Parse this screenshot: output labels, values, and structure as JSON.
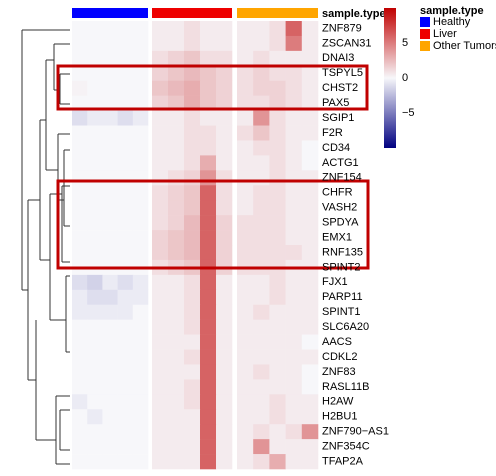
{
  "chart_data": {
    "type": "heatmap",
    "legend_title": "sample.type",
    "rows": [
      "ZNF879",
      "ZSCAN31",
      "DNAI3",
      "TSPYL5",
      "CHST2",
      "PAX5",
      "SGIP1",
      "F2R",
      "CD34",
      "ACTG1",
      "ZNF154",
      "CHFR",
      "VASH2",
      "SPDYA",
      "EMX1",
      "RNF135",
      "SPINT2",
      "FJX1",
      "PARP11",
      "SPINT1",
      "SLC6A20",
      "AACS",
      "CDKL2",
      "ZNF83",
      "RASL11B",
      "H2AW",
      "H2BU1",
      "ZNF790−AS1",
      "ZNF354C",
      "TFAP2A"
    ],
    "clim": [
      -10,
      10
    ],
    "colorbar_ticks": [
      5,
      0,
      {
        "value": -5,
        "label": "−5"
      }
    ],
    "series": [
      {
        "name": "Healthy",
        "color": "#0000ff",
        "values": [
          [
            0,
            0,
            0,
            0,
            0
          ],
          [
            0,
            0,
            0,
            0,
            0
          ],
          [
            0,
            0,
            0,
            0,
            0
          ],
          [
            0,
            0,
            0,
            0,
            0
          ],
          [
            0.2,
            0,
            0,
            0,
            0
          ],
          [
            0,
            0,
            0,
            0,
            0
          ],
          [
            -1,
            -0.5,
            -0.5,
            -1,
            -0.5
          ],
          [
            0,
            0,
            0,
            0,
            0
          ],
          [
            0,
            0,
            0,
            0,
            0
          ],
          [
            0,
            0,
            0,
            0,
            0
          ],
          [
            0,
            0,
            0,
            0,
            0
          ],
          [
            0,
            0,
            0,
            0,
            0
          ],
          [
            0,
            0,
            0,
            0,
            0
          ],
          [
            0,
            0,
            0,
            0,
            0
          ],
          [
            0,
            0,
            0,
            0,
            0
          ],
          [
            0,
            0,
            0,
            0,
            0
          ],
          [
            0,
            0,
            0,
            0,
            0
          ],
          [
            -1,
            -1.5,
            -0.5,
            -1,
            -0.5
          ],
          [
            -0.5,
            -1,
            -1,
            -0.5,
            -0.5
          ],
          [
            -0.5,
            -0.5,
            -0.5,
            -0.5,
            0
          ],
          [
            0,
            0,
            0,
            0,
            0
          ],
          [
            0,
            0,
            0,
            0,
            0
          ],
          [
            0,
            0,
            0,
            0,
            0
          ],
          [
            0,
            0,
            0,
            0,
            0
          ],
          [
            0,
            0,
            0,
            0,
            0
          ],
          [
            -0.5,
            0,
            0,
            0,
            0
          ],
          [
            0,
            -0.5,
            0,
            0,
            0
          ],
          [
            0,
            0,
            0,
            0,
            0
          ],
          [
            0,
            0,
            0,
            0,
            0
          ],
          [
            0,
            0,
            0,
            0,
            0
          ]
        ]
      },
      {
        "name": "Liver",
        "color": "#ee0000",
        "values": [
          [
            0.5,
            0.5,
            1,
            0.5,
            0.5
          ],
          [
            0.5,
            0.5,
            1,
            0.5,
            0.5
          ],
          [
            1,
            1.5,
            2,
            1,
            1
          ],
          [
            1.5,
            2,
            2.5,
            2,
            1.5
          ],
          [
            2,
            2.5,
            3,
            2,
            1.5
          ],
          [
            1.5,
            2,
            3,
            2,
            1.5
          ],
          [
            0.5,
            0.5,
            1,
            0.5,
            0.5
          ],
          [
            0.5,
            0.5,
            1,
            1,
            0.5
          ],
          [
            0.5,
            0.5,
            1,
            1,
            0.5
          ],
          [
            0.5,
            0.5,
            1,
            3,
            0.5
          ],
          [
            0.5,
            1,
            1.5,
            4,
            1
          ],
          [
            1,
            1.5,
            2,
            6,
            1
          ],
          [
            1,
            1.5,
            2,
            6,
            1
          ],
          [
            1,
            1.5,
            2.5,
            6,
            1.5
          ],
          [
            1.5,
            2,
            2.5,
            6,
            1.5
          ],
          [
            1.5,
            2,
            2.5,
            6,
            1.5
          ],
          [
            1,
            1.5,
            2,
            6,
            1.5
          ],
          [
            0.5,
            0.5,
            1,
            6,
            0.5
          ],
          [
            0.5,
            0.5,
            1,
            6,
            0.5
          ],
          [
            0.5,
            0.5,
            1,
            6,
            0.5
          ],
          [
            0.5,
            0.5,
            1,
            6,
            0.5
          ],
          [
            0.5,
            0.5,
            0.5,
            6,
            0.5
          ],
          [
            0.5,
            0.5,
            1,
            6,
            0.5
          ],
          [
            0.5,
            0.5,
            0.5,
            6,
            0.5
          ],
          [
            0.5,
            0.5,
            1,
            6,
            0.5
          ],
          [
            0.5,
            0.5,
            1,
            6,
            0.5
          ],
          [
            0.5,
            0.5,
            0.5,
            6,
            0.5
          ],
          [
            0.5,
            0.5,
            0.5,
            6,
            0.5
          ],
          [
            0.5,
            0.5,
            0.5,
            6,
            0.5
          ],
          [
            0.5,
            0.5,
            0.5,
            6,
            0.5
          ]
        ]
      },
      {
        "name": "Other Tumors",
        "color": "#ffa500",
        "values": [
          [
            0.5,
            0.5,
            1,
            6,
            0.5
          ],
          [
            0.5,
            0.5,
            1,
            5,
            0.5
          ],
          [
            0.5,
            1,
            0.5,
            0.5,
            0.5
          ],
          [
            1,
            1.5,
            1,
            1,
            0.5
          ],
          [
            1,
            1.5,
            1.5,
            1,
            0.5
          ],
          [
            1,
            1,
            1.5,
            1,
            0.5
          ],
          [
            0.5,
            4,
            1,
            0.5,
            0.5
          ],
          [
            1,
            2,
            1,
            0.5,
            0.5
          ],
          [
            0.5,
            1,
            1,
            0.5,
            0
          ],
          [
            0.5,
            0.5,
            1,
            0.5,
            0
          ],
          [
            0.5,
            0.5,
            1,
            0.5,
            0.5
          ],
          [
            0.5,
            1,
            1,
            0.5,
            0.5
          ],
          [
            0.5,
            1,
            1,
            0.5,
            0.5
          ],
          [
            1,
            1,
            1,
            0.5,
            0.5
          ],
          [
            1,
            1,
            1,
            0.5,
            0.5
          ],
          [
            1,
            1,
            1,
            1,
            0.5
          ],
          [
            1,
            1,
            1,
            0.5,
            0.5
          ],
          [
            0.5,
            0.5,
            1,
            0.5,
            0.5
          ],
          [
            0.5,
            0.5,
            1,
            0.5,
            0.5
          ],
          [
            0.5,
            1,
            0.5,
            0.5,
            0.5
          ],
          [
            0.5,
            0.5,
            0.5,
            0.5,
            0.5
          ],
          [
            0.5,
            0.5,
            0.5,
            0.5,
            0
          ],
          [
            0.5,
            0.5,
            0.5,
            0.5,
            0.5
          ],
          [
            0.5,
            1,
            0.5,
            0.5,
            0
          ],
          [
            0.5,
            0.5,
            0.5,
            0.5,
            0
          ],
          [
            0.5,
            0.5,
            1,
            0.5,
            0.5
          ],
          [
            0.5,
            0.5,
            1,
            0.5,
            0.5
          ],
          [
            0.5,
            1,
            0.5,
            1,
            4
          ],
          [
            0.5,
            4,
            0.5,
            0.5,
            0.5
          ],
          [
            0.5,
            1,
            3,
            0.5,
            0.5
          ]
        ]
      }
    ]
  }
}
